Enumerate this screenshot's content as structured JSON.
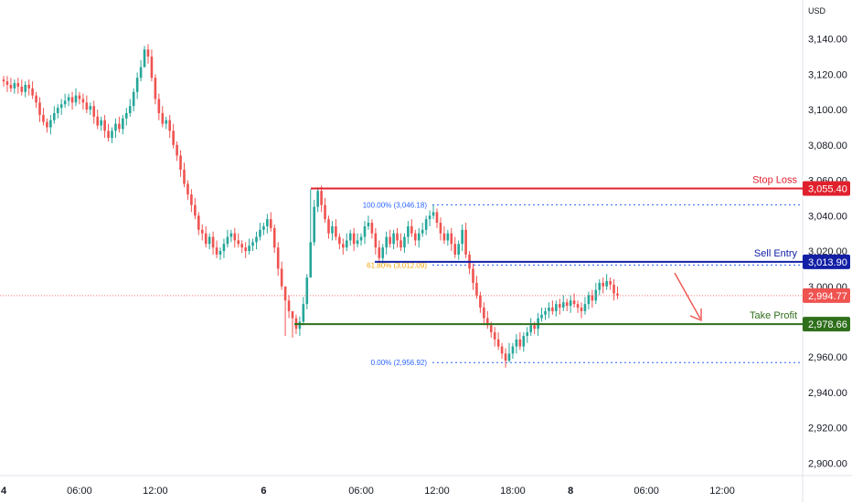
{
  "currency": "USD",
  "colors": {
    "bull": "#26a69a",
    "bear": "#ef5350",
    "stop": "#e0212d",
    "entry": "#1320a6",
    "profit": "#2f6f1b",
    "fib": "#2962ff",
    "fib_mid": "#f0a30a",
    "arrow": "#ef5350",
    "current": "#ef5350"
  },
  "chart_data": {
    "type": "candlestick",
    "ylim": [
      2893,
      3162
    ],
    "y_ticks": [
      "3,140.00",
      "3,120.00",
      "3,100.00",
      "3,080.00",
      "3,060.00",
      "3,040.00",
      "3,020.00",
      "3,000.00",
      "2,980.00",
      "2,960.00",
      "2,940.00",
      "2,920.00",
      "2,900.00"
    ],
    "y_tick_values": [
      3140,
      3120,
      3100,
      3080,
      3060,
      3040,
      3020,
      3000,
      2980,
      2960,
      2940,
      2920,
      2900
    ],
    "x_ticks": [
      {
        "label": "4",
        "bold": true,
        "i": 0
      },
      {
        "label": "06:00",
        "bold": false,
        "i": 21
      },
      {
        "label": "12:00",
        "bold": false,
        "i": 42
      },
      {
        "label": "6",
        "bold": true,
        "i": 72
      },
      {
        "label": "06:00",
        "bold": false,
        "i": 99
      },
      {
        "label": "12:00",
        "bold": false,
        "i": 120
      },
      {
        "label": "18:00",
        "bold": false,
        "i": 141
      },
      {
        "label": "8",
        "bold": true,
        "i": 157
      },
      {
        "label": "06:00",
        "bold": false,
        "i": 178
      },
      {
        "label": "12:00",
        "bold": false,
        "i": 199
      }
    ],
    "closes": [
      3116,
      3114,
      3112,
      3115,
      3113,
      3110,
      3114,
      3112,
      3108,
      3104,
      3097,
      3093,
      3090,
      3094,
      3098,
      3101,
      3103,
      3105,
      3107,
      3104,
      3108,
      3106,
      3104,
      3100,
      3102,
      3096,
      3091,
      3094,
      3088,
      3084,
      3088,
      3092,
      3089,
      3095,
      3098,
      3102,
      3110,
      3118,
      3124,
      3134,
      3130,
      3118,
      3106,
      3098,
      3092,
      3094,
      3088,
      3080,
      3074,
      3066,
      3058,
      3052,
      3046,
      3040,
      3032,
      3030,
      3024,
      3028,
      3022,
      3018,
      3020,
      3024,
      3028,
      3030,
      3026,
      3024,
      3022,
      3020,
      3023,
      3025,
      3028,
      3032,
      3034,
      3038,
      3033,
      3022,
      3010,
      3000,
      2992,
      2986,
      2982,
      2976,
      2980,
      2990,
      3005,
      3025,
      3045,
      3054,
      3046,
      3038,
      3030,
      3034,
      3028,
      3024,
      3022,
      3026,
      3030,
      3024,
      3026,
      3028,
      3034,
      3036,
      3030,
      3022,
      3016,
      3022,
      3028,
      3024,
      3030,
      3026,
      3022,
      3028,
      3034,
      3030,
      3026,
      3030,
      3032,
      3038,
      3040,
      3042,
      3036,
      3030,
      3026,
      3030,
      3024,
      3018,
      3024,
      3032,
      3018,
      3010,
      3002,
      2995,
      2988,
      2982,
      2978,
      2974,
      2970,
      2966,
      2962,
      2958,
      2962,
      2966,
      2970,
      2966,
      2972,
      2974,
      2978,
      2976,
      2982,
      2984,
      2986,
      2988,
      2986,
      2990,
      2988,
      2991,
      2989,
      2992,
      2990,
      2988,
      2986,
      2990,
      2995,
      2992,
      2998,
      3002,
      3000,
      3003,
      3001,
      2996,
      2994.77
    ],
    "wick_overrides": {
      "39": [
        3136,
        3124
      ],
      "85": [
        3055,
        3022
      ],
      "140": [
        2968,
        2957
      ],
      "78": [
        2994,
        2972
      ],
      "80": [
        2984,
        2971
      ]
    },
    "stop_loss": {
      "label": "Stop Loss",
      "value": 3055.4,
      "value_label": "3,055.40"
    },
    "sell_entry": {
      "label": "Sell Entry",
      "value": 3013.9,
      "value_label": "3,013.90"
    },
    "take_profit": {
      "label": "Take Profit",
      "value": 2978.66,
      "value_label": "2,978.66"
    },
    "current_price": {
      "value": 2994.77,
      "value_label": "2,994.77"
    },
    "fib_levels": [
      {
        "label": "100.00% (3,046.18)",
        "value": 3046.18
      },
      {
        "label": "61.80% (3,012.09)",
        "value": 3012.09
      },
      {
        "label": "0.00% (2,956.92)",
        "value": 2956.92
      }
    ]
  }
}
